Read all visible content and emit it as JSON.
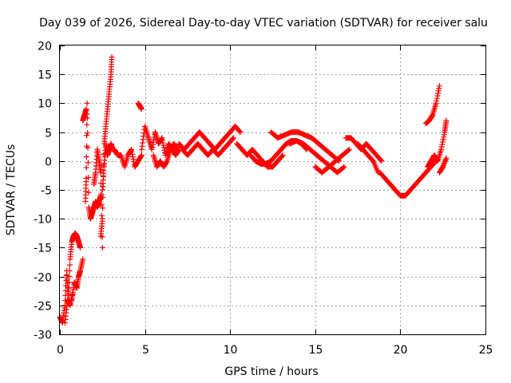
{
  "chart_data": {
    "type": "scatter",
    "title": "Day 039 of 2026, Sidereal Day-to-day VTEC variation (SDTVAR) for receiver salu",
    "xlabel": "GPS time / hours",
    "ylabel": "SDTVAR / TECUs",
    "xlim": [
      0,
      25
    ],
    "ylim": [
      -30,
      20
    ],
    "xticks": [
      0,
      5,
      10,
      15,
      20,
      25
    ],
    "yticks": [
      -30,
      -25,
      -20,
      -15,
      -10,
      -5,
      0,
      5,
      10,
      15,
      20
    ],
    "grid": true,
    "marker": "+",
    "color": "#ff0000",
    "series": [
      {
        "name": "SDTVAR",
        "segments": [
          {
            "x": [
              0.0,
              0.15,
              0.3,
              0.4,
              0.5,
              0.6,
              0.7,
              0.8,
              0.9,
              1.0,
              1.1,
              1.2
            ],
            "y": [
              -27,
              -28,
              -25,
              -19,
              -24,
              -17,
              -14,
              -13,
              -12.5,
              -13,
              -14,
              -15
            ]
          },
          {
            "x": [
              0.3,
              0.45,
              0.6,
              0.75
            ],
            "y": [
              -28,
              -24,
              -25,
              -23
            ]
          },
          {
            "x": [
              0.7,
              0.85,
              1.0,
              1.1,
              1.2,
              1.35
            ],
            "y": [
              -24,
              -21,
              -22,
              -20,
              -19,
              -17
            ]
          },
          {
            "x": [
              1.35,
              1.45,
              1.55
            ],
            "y": [
              7,
              8,
              9
            ]
          },
          {
            "x": [
              1.5,
              1.55,
              1.6,
              1.7,
              1.8,
              1.9,
              2.0,
              2.1,
              2.2,
              2.3,
              2.4
            ],
            "y": [
              -7,
              -3,
              10,
              -8,
              -10,
              -9,
              -8,
              -7,
              -8,
              -7,
              -6
            ]
          },
          {
            "x": [
              2.0,
              2.1,
              2.2,
              2.3,
              2.4,
              2.5
            ],
            "y": [
              -4,
              -2,
              2,
              0,
              -2,
              -15
            ]
          },
          {
            "x": [
              2.4,
              2.5,
              2.6,
              2.7,
              2.8,
              2.9,
              3.0,
              3.05
            ],
            "y": [
              -13,
              -10,
              3,
              6,
              9,
              12,
              15,
              18
            ]
          },
          {
            "x": [
              2.5,
              2.6,
              2.7,
              2.8,
              2.9,
              3.0,
              3.1
            ],
            "y": [
              -5,
              -1,
              3,
              1,
              2,
              3,
              2
            ]
          },
          {
            "x": [
              3.2,
              3.4,
              3.6,
              3.8,
              4.0,
              4.2,
              4.4,
              4.6,
              4.8
            ],
            "y": [
              2,
              1,
              1,
              -1,
              1,
              2,
              -1,
              0,
              1
            ]
          },
          {
            "x": [
              4.6,
              4.7,
              4.8
            ],
            "y": [
              10,
              9.5,
              9
            ]
          },
          {
            "x": [
              4.8,
              5.0,
              5.2,
              5.4,
              5.6,
              5.8,
              6.0,
              6.2,
              6.4,
              6.6,
              6.8,
              7.0
            ],
            "y": [
              2,
              6,
              4,
              2,
              5,
              3,
              4,
              1,
              3,
              2,
              1,
              2
            ]
          },
          {
            "x": [
              5.5,
              5.7,
              5.9,
              6.1,
              6.3,
              6.5,
              6.7,
              6.9
            ],
            "y": [
              1,
              -1,
              0,
              -1,
              0,
              2,
              3,
              2
            ]
          },
          {
            "x": [
              7.0,
              7.3,
              7.6,
              7.9,
              8.2,
              8.5,
              8.8,
              9.1,
              9.4,
              9.7,
              10.0,
              10.3,
              10.6
            ],
            "y": [
              3,
              2,
              3,
              4,
              5,
              4,
              3,
              2,
              3,
              4,
              5,
              6,
              5
            ]
          },
          {
            "x": [
              7.2,
              7.5,
              7.8,
              8.1,
              8.4,
              8.7,
              9.0,
              9.3,
              9.6,
              9.9,
              10.2
            ],
            "y": [
              2,
              1,
              2,
              3,
              2,
              1,
              2,
              1,
              2,
              3,
              4
            ]
          },
          {
            "x": [
              10.4,
              10.7,
              11.0,
              11.3,
              11.6,
              11.9,
              12.2,
              12.5,
              12.8,
              13.1
            ],
            "y": [
              3,
              2,
              1,
              2,
              1,
              0,
              -1,
              -1,
              0,
              1
            ]
          },
          {
            "x": [
              11.2,
              11.5,
              11.8,
              12.1,
              12.4,
              12.7,
              13.0,
              13.3,
              13.6,
              13.9,
              14.2,
              14.5
            ],
            "y": [
              1,
              0,
              -0.5,
              -0.5,
              0,
              1,
              2,
              3,
              3.5,
              3.5,
              3,
              2
            ]
          },
          {
            "x": [
              12.4,
              12.8,
              13.2,
              13.6,
              14.0,
              14.4,
              14.8,
              15.2,
              15.6,
              16.0,
              16.4
            ],
            "y": [
              5,
              4,
              4.5,
              5,
              5,
              4.5,
              4,
              3,
              2,
              1,
              0
            ]
          },
          {
            "x": [
              13.5,
              13.9,
              14.3,
              14.7,
              15.1,
              15.5,
              15.9,
              16.3,
              16.7
            ],
            "y": [
              3,
              3.5,
              3,
              2,
              1,
              0,
              -1,
              -2,
              -1
            ]
          },
          {
            "x": [
              15.0,
              15.4,
              15.8,
              16.2,
              16.6,
              17.0
            ],
            "y": [
              -1,
              -2,
              -1,
              0,
              1,
              2
            ]
          },
          {
            "x": [
              16.8,
              17.1,
              17.4,
              17.7,
              18.0,
              18.3,
              18.6,
              18.9
            ],
            "y": [
              4,
              4,
              3,
              2,
              3,
              2,
              1,
              0
            ]
          },
          {
            "x": [
              17.5,
              17.8,
              18.1,
              18.4,
              18.7
            ],
            "y": [
              3,
              2,
              1,
              0,
              -2
            ]
          },
          {
            "x": [
              18.8,
              19.1,
              19.4,
              19.7,
              20.0,
              20.3,
              20.6,
              20.9,
              21.2,
              21.5,
              21.8,
              22.1
            ],
            "y": [
              -2,
              -3,
              -4,
              -5,
              -6,
              -6,
              -5,
              -4,
              -3,
              -2,
              -1,
              0
            ]
          },
          {
            "x": [
              21.5,
              21.7,
              21.9,
              22.1,
              22.3
            ],
            "y": [
              6.5,
              7,
              8,
              10,
              13
            ]
          },
          {
            "x": [
              21.6,
              21.8,
              22.0,
              22.2,
              22.4,
              22.6,
              22.7
            ],
            "y": [
              -1,
              0,
              1,
              0,
              2,
              5,
              7
            ]
          },
          {
            "x": [
              22.3,
              22.5,
              22.7
            ],
            "y": [
              -2,
              -1,
              0.5
            ]
          }
        ]
      }
    ]
  }
}
